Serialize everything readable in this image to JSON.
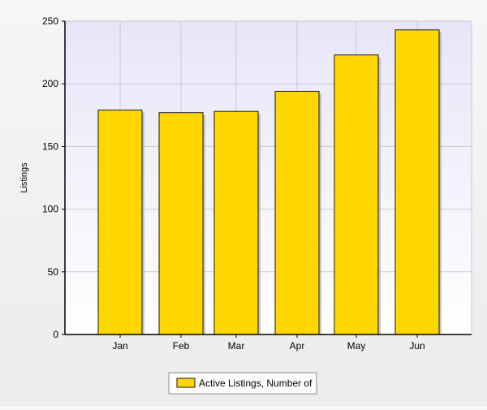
{
  "chart_data": {
    "type": "bar",
    "title": "",
    "xlabel": "",
    "ylabel": "Listings",
    "categories": [
      "Jan",
      "Feb",
      "Mar",
      "Apr",
      "May",
      "Jun"
    ],
    "series": [
      {
        "name": "Active Listings, Number of",
        "values": [
          179,
          177,
          178,
          194,
          223,
          243
        ],
        "color": "#ffd700"
      }
    ],
    "ylim": [
      0,
      250
    ],
    "yticks": [
      0,
      50,
      100,
      150,
      200,
      250
    ],
    "grid": true,
    "legend_position": "bottom",
    "colors": {
      "plot_background_top": "#e6e6f8",
      "plot_background_bottom": "#ffffff",
      "bar_fill": "#ffd700",
      "bar_stroke": "#1a1a1a",
      "grid": "#c8c8d8"
    }
  }
}
